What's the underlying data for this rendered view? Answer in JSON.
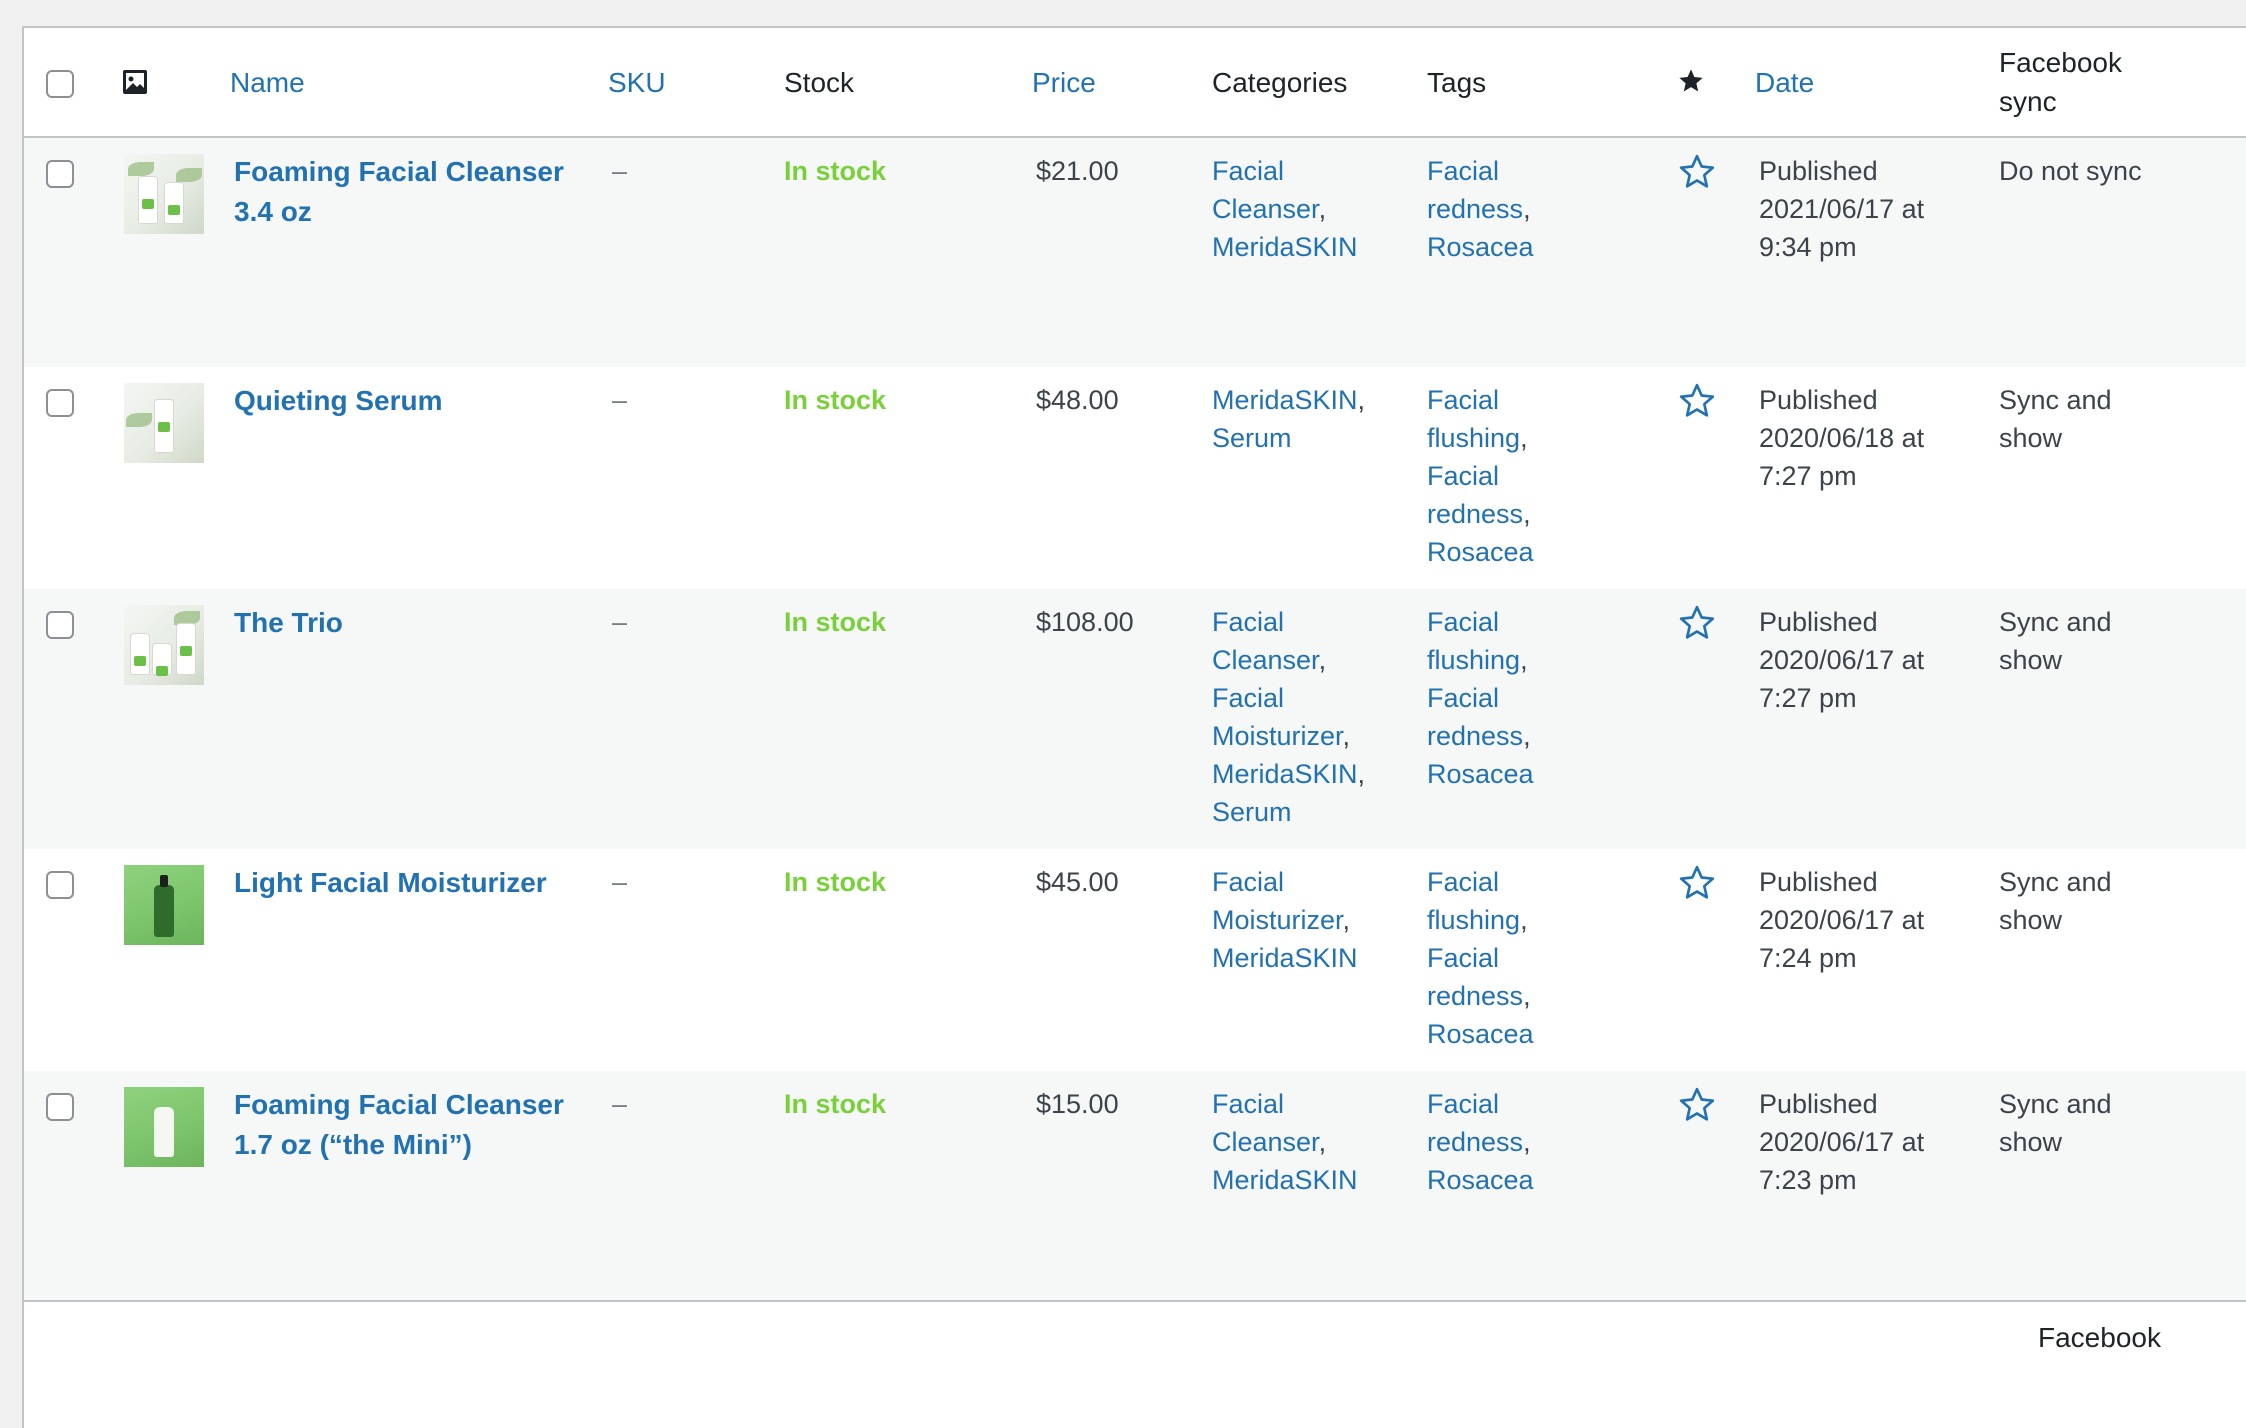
{
  "columns": {
    "name": "Name",
    "sku": "SKU",
    "stock": "Stock",
    "price": "Price",
    "categories": "Categories",
    "tags": "Tags",
    "date": "Date",
    "facebook_sync_line1": "Facebook",
    "facebook_sync_line2": "sync"
  },
  "icons": {
    "thumbnail_header": "image-icon",
    "featured_header": "star-filled-icon",
    "featured_row": "star-outline-icon"
  },
  "colors": {
    "link": "#2271b1",
    "in_stock": "#7ad03a",
    "alt_row": "#f6f7f7",
    "border": "#c3c4c7"
  },
  "products": [
    {
      "name_line1": "Foaming Facial Cleanser",
      "name_line2": "3.4 oz",
      "sku": "–",
      "stock": "In stock",
      "price": "$21.00",
      "categories": [
        "Facial",
        "Cleanser",
        "MeridaSKIN"
      ],
      "tags": [
        "Facial",
        "redness",
        "Rosacea"
      ],
      "date_status": "Published",
      "date_day": "2021/06/17 at",
      "date_time": "9:34 pm",
      "facebook_sync_line1": "Do not sync",
      "facebook_sync_line2": ""
    },
    {
      "name_line1": "Quieting Serum",
      "name_line2": "",
      "sku": "–",
      "stock": "In stock",
      "price": "$48.00",
      "categories": [
        "MeridaSKIN",
        "Serum"
      ],
      "tags": [
        "Facial",
        "flushing",
        "Facial",
        "redness",
        "Rosacea"
      ],
      "date_status": "Published",
      "date_day": "2020/06/18 at",
      "date_time": "7:27 pm",
      "facebook_sync_line1": "Sync and",
      "facebook_sync_line2": "show"
    },
    {
      "name_line1": "The Trio",
      "name_line2": "",
      "sku": "–",
      "stock": "In stock",
      "price": "$108.00",
      "categories": [
        "Facial",
        "Cleanser",
        "Facial",
        "Moisturizer",
        "MeridaSKIN",
        "Serum"
      ],
      "tags": [
        "Facial",
        "flushing",
        "Facial",
        "redness",
        "Rosacea"
      ],
      "date_status": "Published",
      "date_day": "2020/06/17 at",
      "date_time": "7:27 pm",
      "facebook_sync_line1": "Sync and",
      "facebook_sync_line2": "show"
    },
    {
      "name_line1": "Light Facial Moisturizer",
      "name_line2": "",
      "sku": "–",
      "stock": "In stock",
      "price": "$45.00",
      "categories": [
        "Facial",
        "Moisturizer",
        "MeridaSKIN"
      ],
      "tags": [
        "Facial",
        "flushing",
        "Facial",
        "redness",
        "Rosacea"
      ],
      "date_status": "Published",
      "date_day": "2020/06/17 at",
      "date_time": "7:24 pm",
      "facebook_sync_line1": "Sync and",
      "facebook_sync_line2": "show"
    },
    {
      "name_line1": "Foaming Facial Cleanser",
      "name_line2": "1.7 oz (“the Mini”)",
      "sku": "–",
      "stock": "In stock",
      "price": "$15.00",
      "categories": [
        "Facial",
        "Cleanser",
        "MeridaSKIN"
      ],
      "tags": [
        "Facial",
        "redness",
        "Rosacea"
      ],
      "date_status": "Published",
      "date_day": "2020/06/17 at",
      "date_time": "7:23 pm",
      "facebook_sync_line1": "Sync and",
      "facebook_sync_line2": "show"
    }
  ],
  "footer": {
    "facebook_partial": "Facebook"
  }
}
